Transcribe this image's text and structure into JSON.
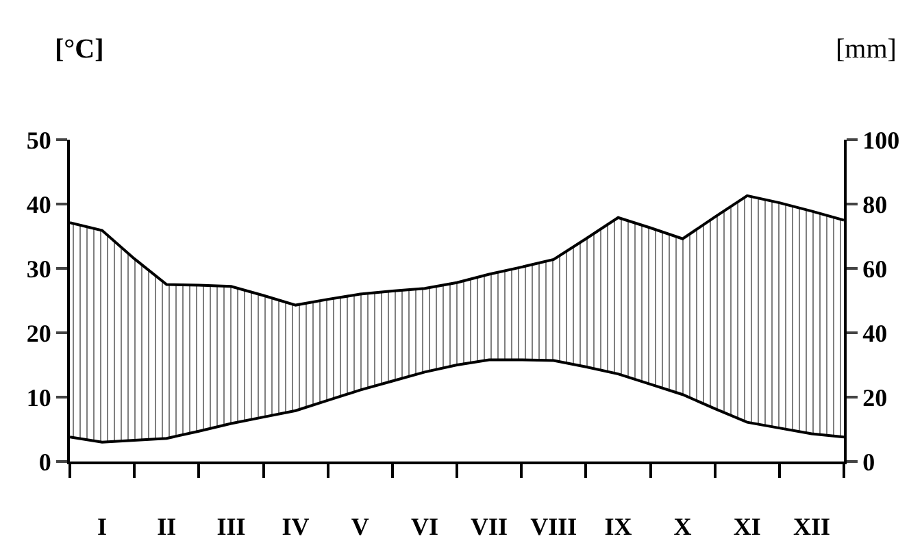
{
  "chart_data": {
    "type": "area",
    "ylabel": "[°C]",
    "y2label": "[mm]",
    "categories": [
      null,
      "I",
      null,
      "II",
      null,
      "III",
      null,
      "IV",
      null,
      "V",
      null,
      "VI",
      null,
      "VII",
      null,
      "VIII",
      null,
      "IX",
      null,
      "X",
      null,
      "XI",
      null,
      "XII",
      null
    ],
    "series": [
      {
        "color": "#000000",
        "axis": "y2",
        "values": [
          74.2,
          71.8,
          63,
          55,
          54.8,
          54.4,
          51.6,
          48.6,
          50.4,
          52,
          53,
          53.8,
          55.6,
          58.2,
          60.4,
          62.8,
          69.2,
          75.8,
          72.6,
          69.2,
          76,
          82.6,
          80.4,
          77.8,
          75
        ]
      },
      {
        "color": "#000000",
        "axis": "y",
        "values": [
          3.8,
          3.0,
          3.3,
          3.6,
          4.7,
          5.9,
          6.9,
          7.9,
          9.5,
          11.1,
          12.5,
          13.9,
          15.0,
          15.8,
          15.8,
          15.7,
          14.7,
          13.6,
          12.0,
          10.4,
          8.2,
          6.1,
          5.2,
          4.3,
          3.8
        ]
      }
    ],
    "ylim": [
      0,
      50
    ],
    "yticks": [
      0,
      10,
      20,
      30,
      40,
      50
    ],
    "y2lim": [
      0,
      100
    ],
    "y2ticks": [
      0,
      20,
      40,
      60,
      80,
      100
    ],
    "marker": "none",
    "line_style": "solid"
  }
}
